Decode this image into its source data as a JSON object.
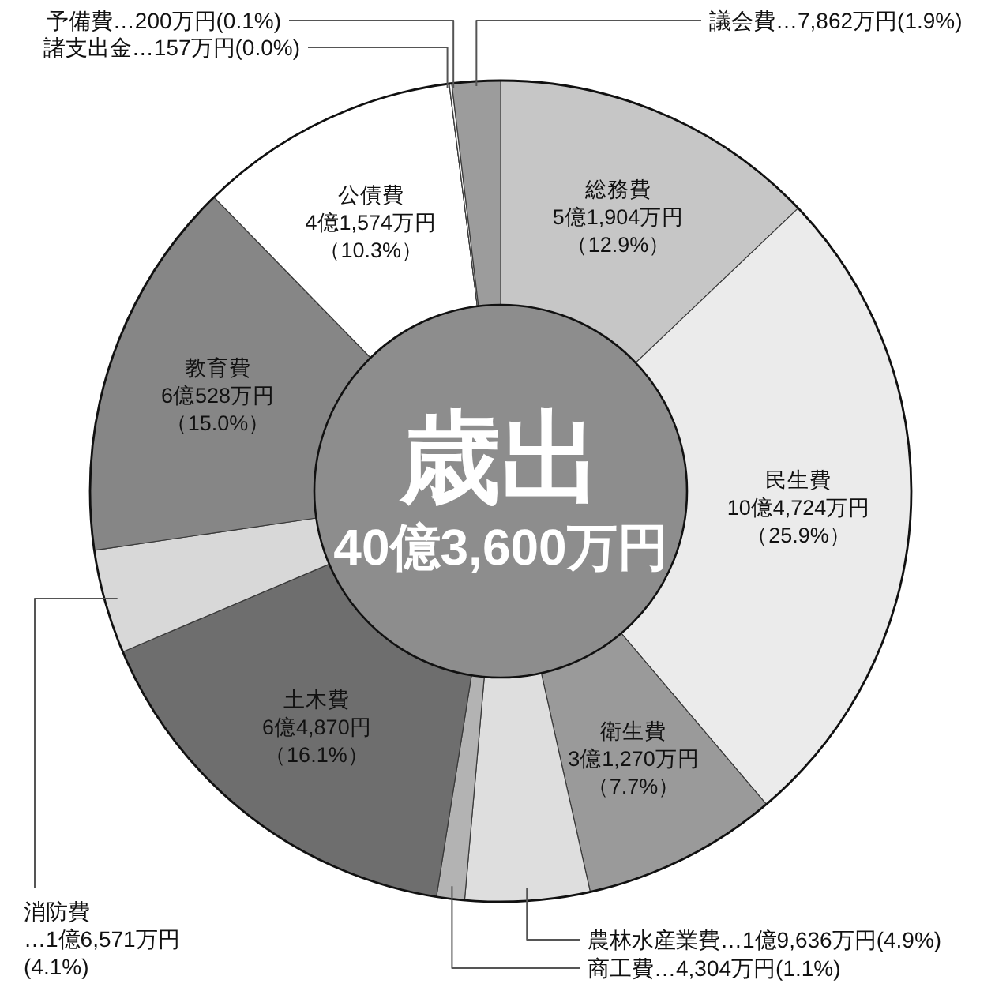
{
  "chart_data": {
    "type": "donut",
    "title": "歳出",
    "subtitle": "40億3,600万円",
    "categories": [
      "総務費",
      "民生費",
      "衛生費",
      "農林水産業費",
      "商工費",
      "土木費",
      "消防費",
      "教育費",
      "公債費",
      "諸支出金",
      "予備費",
      "議会費"
    ],
    "values": [
      12.9,
      25.9,
      7.7,
      4.9,
      1.1,
      16.1,
      4.1,
      15.0,
      10.3,
      0.0,
      0.1,
      1.9
    ],
    "value_labels": [
      "5億1,904万円（12.9%）",
      "10億4,724万円（25.9%）",
      "3億1,270万円（7.7%）",
      "…1億9,636万円(4.9%)",
      "…4,304万円(1.1%)",
      "6億4,870円（16.1%）",
      "…1億6,571万円(4.1%)",
      "6億528万円（15.0%）",
      "4億1,574万円（10.3%）",
      "…157万円(0.0%)",
      "…200万円(0.1%)",
      "…7,862万円(1.9%)"
    ],
    "colors": [
      "#c6c6c6",
      "#ebebeb",
      "#9a9a9a",
      "#dedede",
      "#b3b3b3",
      "#6e6e6e",
      "#d8d8d8",
      "#868686",
      "#ffffff",
      "#ffffff",
      "#f2f2f2",
      "#9c9c9c"
    ]
  }
}
